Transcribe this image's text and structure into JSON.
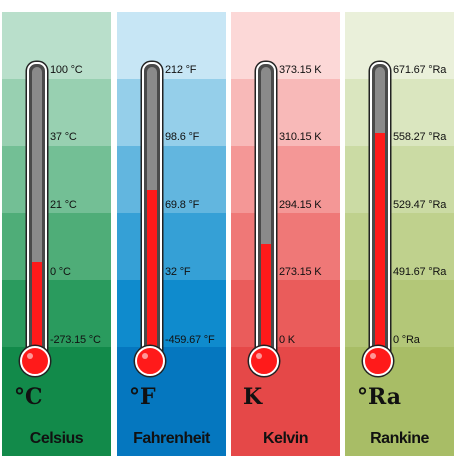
{
  "scales": [
    {
      "name": "Celsius",
      "symbol": "°C",
      "ticks": [
        "100 °C",
        "37 °C",
        "21 °C",
        "0 °C",
        "-273.15 °C"
      ],
      "fill_level": 0.34,
      "colors": [
        "#b9dfcb",
        "#98d0b1",
        "#73bf95",
        "#4fad78",
        "#2a9b5e",
        "#128a4a"
      ]
    },
    {
      "name": "Fahrenheit",
      "symbol": "°F",
      "ticks": [
        "212 °F",
        "98.6 °F",
        "69.8 °F",
        "32 °F",
        "-459.67 °F"
      ],
      "fill_level": 0.58,
      "colors": [
        "#c7e6f5",
        "#95cfea",
        "#62b6df",
        "#35a0d6",
        "#0f8bcd",
        "#0577bf"
      ]
    },
    {
      "name": "Kelvin",
      "symbol": "K",
      "ticks": [
        "373.15 K",
        "310.15 K",
        "294.15 K",
        "273.15 K",
        "0 K"
      ],
      "fill_level": 0.4,
      "colors": [
        "#fcd8d7",
        "#f8b9b8",
        "#f49796",
        "#ef7877",
        "#ea5c5b",
        "#e54848"
      ]
    },
    {
      "name": "Rankine",
      "symbol": "°Ra",
      "ticks": [
        "671.67 °Ra",
        "558.27 °Ra",
        "529.47 °Ra",
        "491.67 °Ra",
        "0 °Ra"
      ],
      "fill_level": 0.77,
      "colors": [
        "#eaf0da",
        "#dae6bf",
        "#cbdba4",
        "#bfd18d",
        "#b3c778",
        "#a8bd66"
      ]
    }
  ]
}
